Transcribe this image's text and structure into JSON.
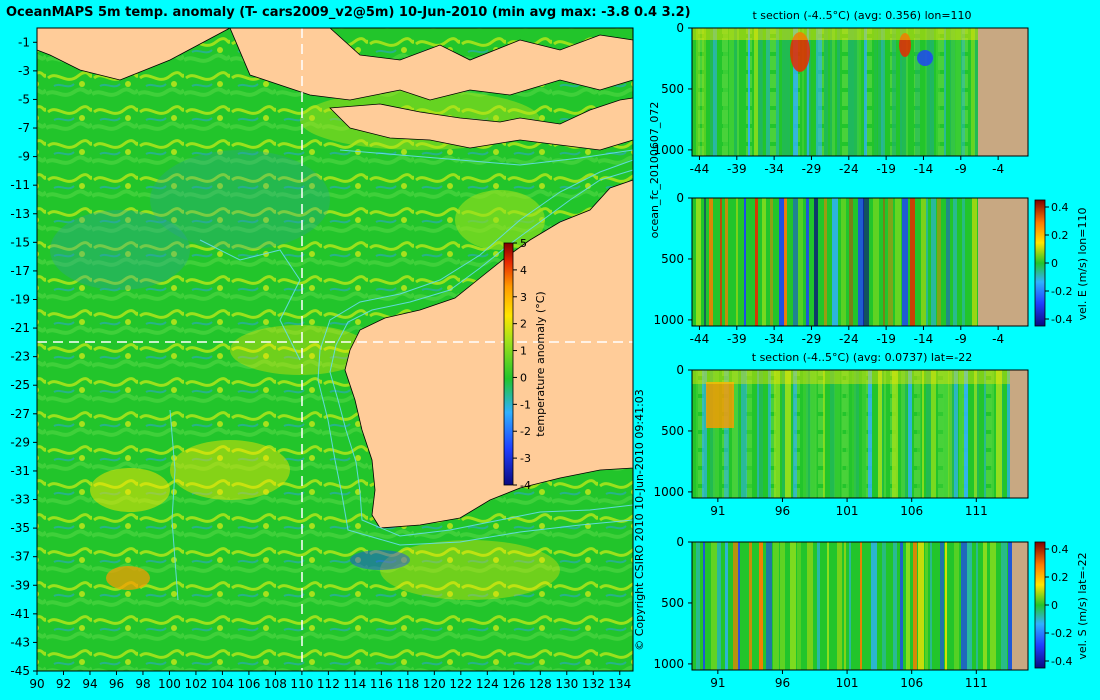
{
  "main_title": "OceanMAPS 5m temp. anomaly (T- cars2009_v2@5m) 10-Jun-2010 (min avg max: -3.8 0.4 3.2)",
  "side_label_model": "ocean_fc_20100607_072",
  "side_label_copyright": "© Copyright CSIRO 2010   10-Jun-2010 09:41:03",
  "colors": {
    "background": "#00ffff",
    "land": "#ffcc99",
    "section_land": "#c8a882",
    "sea_mid": "#22c52b",
    "contour": "#66ddee",
    "crosshair": "#ffffff"
  },
  "chart_data": [
    {
      "id": "map",
      "type": "heatmap",
      "title": "OceanMAPS 5m temp. anomaly (T- cars2009_v2@5m) 10-Jun-2010 (min avg max: -3.8 0.4 3.2)",
      "xlabel": "",
      "ylabel": "",
      "xlim": [
        90,
        135
      ],
      "ylim": [
        -45,
        0
      ],
      "x_ticks": [
        "90",
        "92",
        "94",
        "96",
        "98",
        "100",
        "102",
        "104",
        "106",
        "108",
        "110",
        "112",
        "114",
        "116",
        "118",
        "120",
        "122",
        "124",
        "126",
        "128",
        "130",
        "132",
        "134"
      ],
      "y_ticks": [
        "-1",
        "-3",
        "-5",
        "-7",
        "-9",
        "-11",
        "-13",
        "-15",
        "-17",
        "-19",
        "-21",
        "-23",
        "-25",
        "-27",
        "-29",
        "-31",
        "-33",
        "-35",
        "-37",
        "-39",
        "-41",
        "-43",
        "-45"
      ],
      "crosshair": {
        "lon": 110,
        "lat": -22
      },
      "colorbar": {
        "label": "temperature anomaly (°C)",
        "ticks": [
          "5",
          "4",
          "3",
          "2",
          "1",
          "0",
          "-1",
          "-2",
          "-3",
          "-4"
        ],
        "range": [
          -4,
          5
        ]
      },
      "summary": {
        "min": -3.8,
        "avg": 0.4,
        "max": 3.2
      }
    },
    {
      "id": "t-section-lon",
      "type": "heatmap",
      "title": "t section (-4..5°C) (avg: 0.356) lon=110",
      "x_ticks": [
        "-44",
        "-39",
        "-34",
        "-29",
        "-24",
        "-19",
        "-14",
        "-9",
        "-4"
      ],
      "y_ticks": [
        "0",
        "500",
        "1000"
      ],
      "xlim": [
        -45,
        0
      ],
      "ylim": [
        1050,
        0
      ],
      "land_from_x": -8
    },
    {
      "id": "vel-e-lon",
      "type": "heatmap",
      "title": "",
      "x_ticks": [
        "-44",
        "-39",
        "-34",
        "-29",
        "-24",
        "-19",
        "-14",
        "-9",
        "-4"
      ],
      "y_ticks": [
        "0",
        "500",
        "1000"
      ],
      "xlim": [
        -45,
        0
      ],
      "ylim": [
        1050,
        0
      ],
      "land_from_x": -8,
      "colorbar": {
        "label": "vel. E (m/s) lon=110",
        "ticks": [
          "0.4",
          "0.2",
          "0",
          "-0.2",
          "-0.4"
        ],
        "range": [
          -0.45,
          0.45
        ]
      }
    },
    {
      "id": "t-section-lat",
      "type": "heatmap",
      "title": "t section (-4..5°C) (avg: 0.0737) lat=-22",
      "x_ticks": [
        "91",
        "96",
        "101",
        "106",
        "111"
      ],
      "y_ticks": [
        "0",
        "500",
        "1000"
      ],
      "xlim": [
        89,
        115
      ],
      "ylim": [
        1050,
        0
      ],
      "land_from_x": 113.8
    },
    {
      "id": "vel-s-lat",
      "type": "heatmap",
      "title": "",
      "x_ticks": [
        "91",
        "96",
        "101",
        "106",
        "111"
      ],
      "y_ticks": [
        "0",
        "500",
        "1000"
      ],
      "xlim": [
        89,
        115
      ],
      "ylim": [
        1050,
        0
      ],
      "land_from_x": 114.2,
      "colorbar": {
        "label": "vel. S (m/s) lat=-22",
        "ticks": [
          "0.4",
          "0.2",
          "0",
          "-0.2",
          "-0.4"
        ],
        "range": [
          -0.45,
          0.45
        ]
      }
    }
  ]
}
